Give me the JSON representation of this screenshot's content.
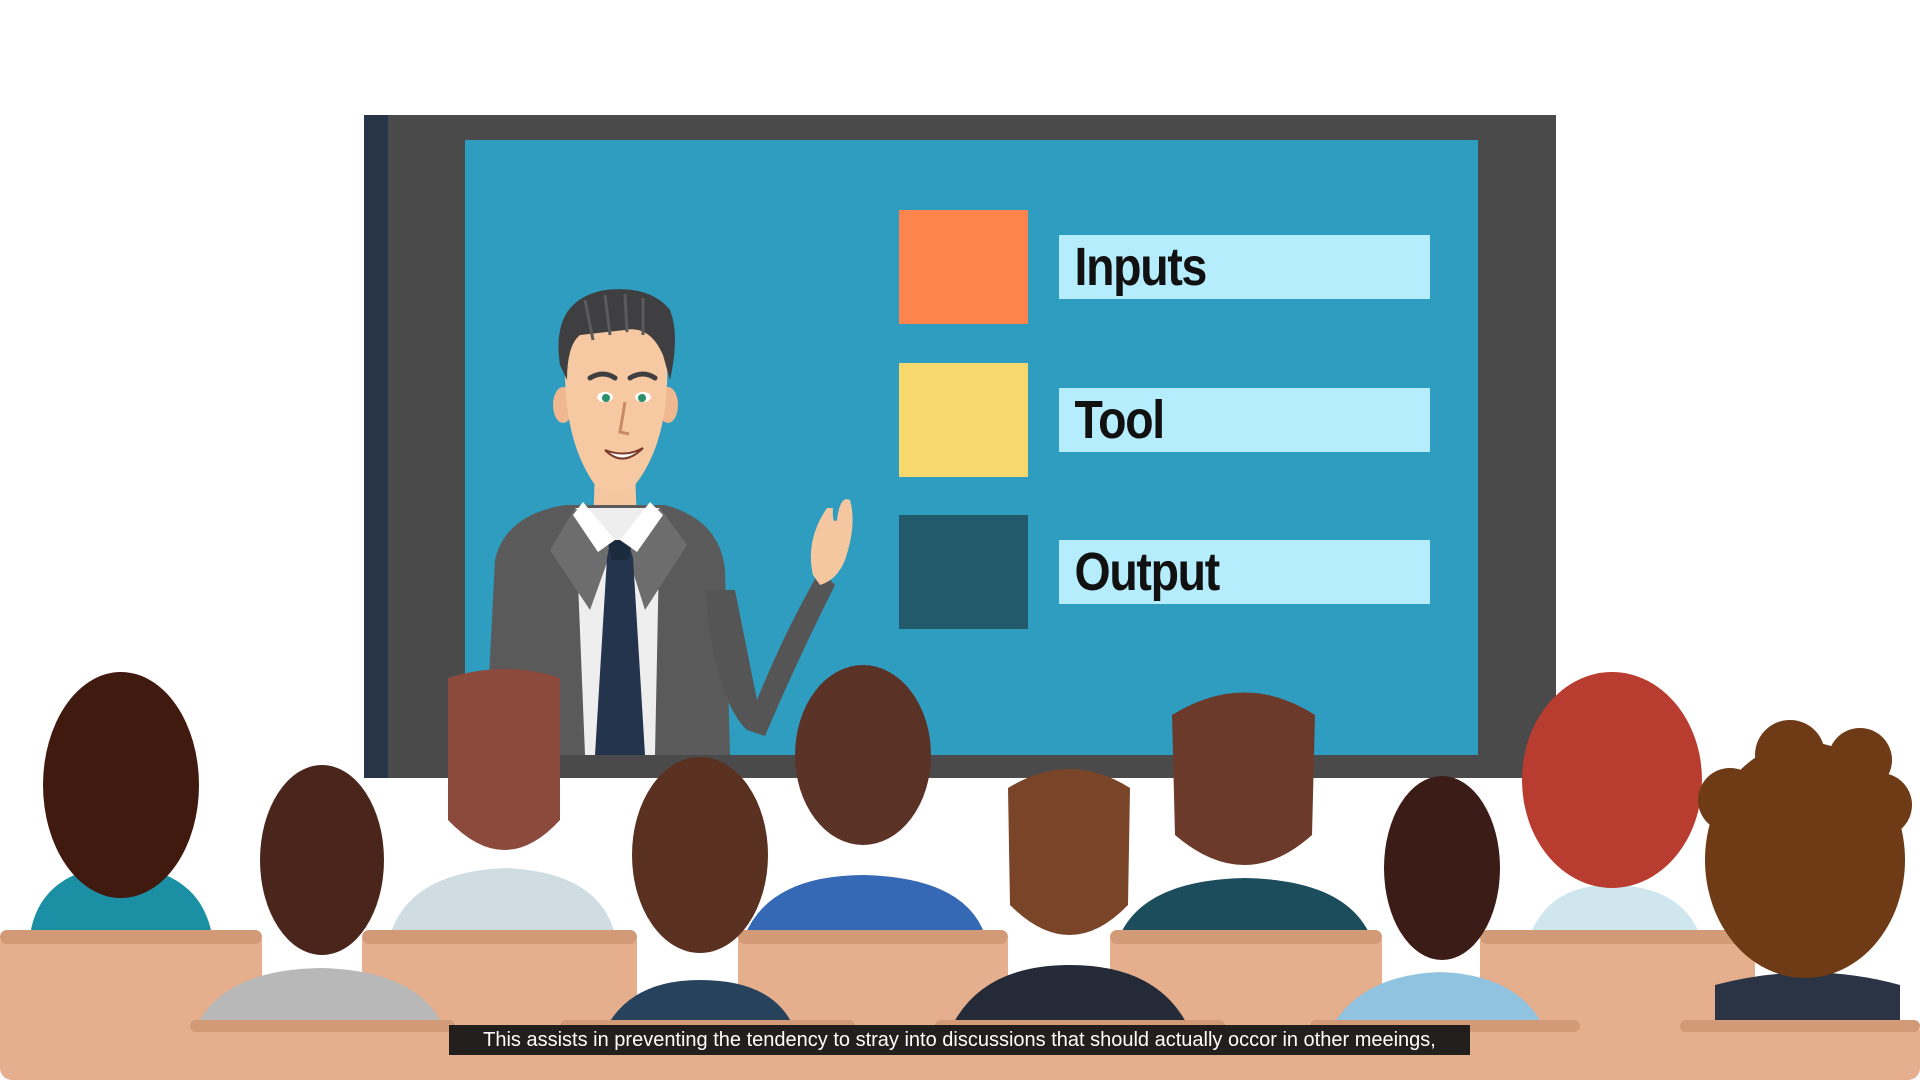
{
  "slide": {
    "items": [
      {
        "label": "Inputs",
        "color": "#fd844c"
      },
      {
        "label": "Tool",
        "color": "#f6d86c"
      },
      {
        "label": "Output",
        "color": "#235a6b"
      }
    ],
    "screen_color": "#2f9dbf",
    "label_bg": "#b5edfd"
  },
  "caption": {
    "text": "This assists in preventing the tendency to stray into discussions that should actually occor in other meeings,"
  }
}
